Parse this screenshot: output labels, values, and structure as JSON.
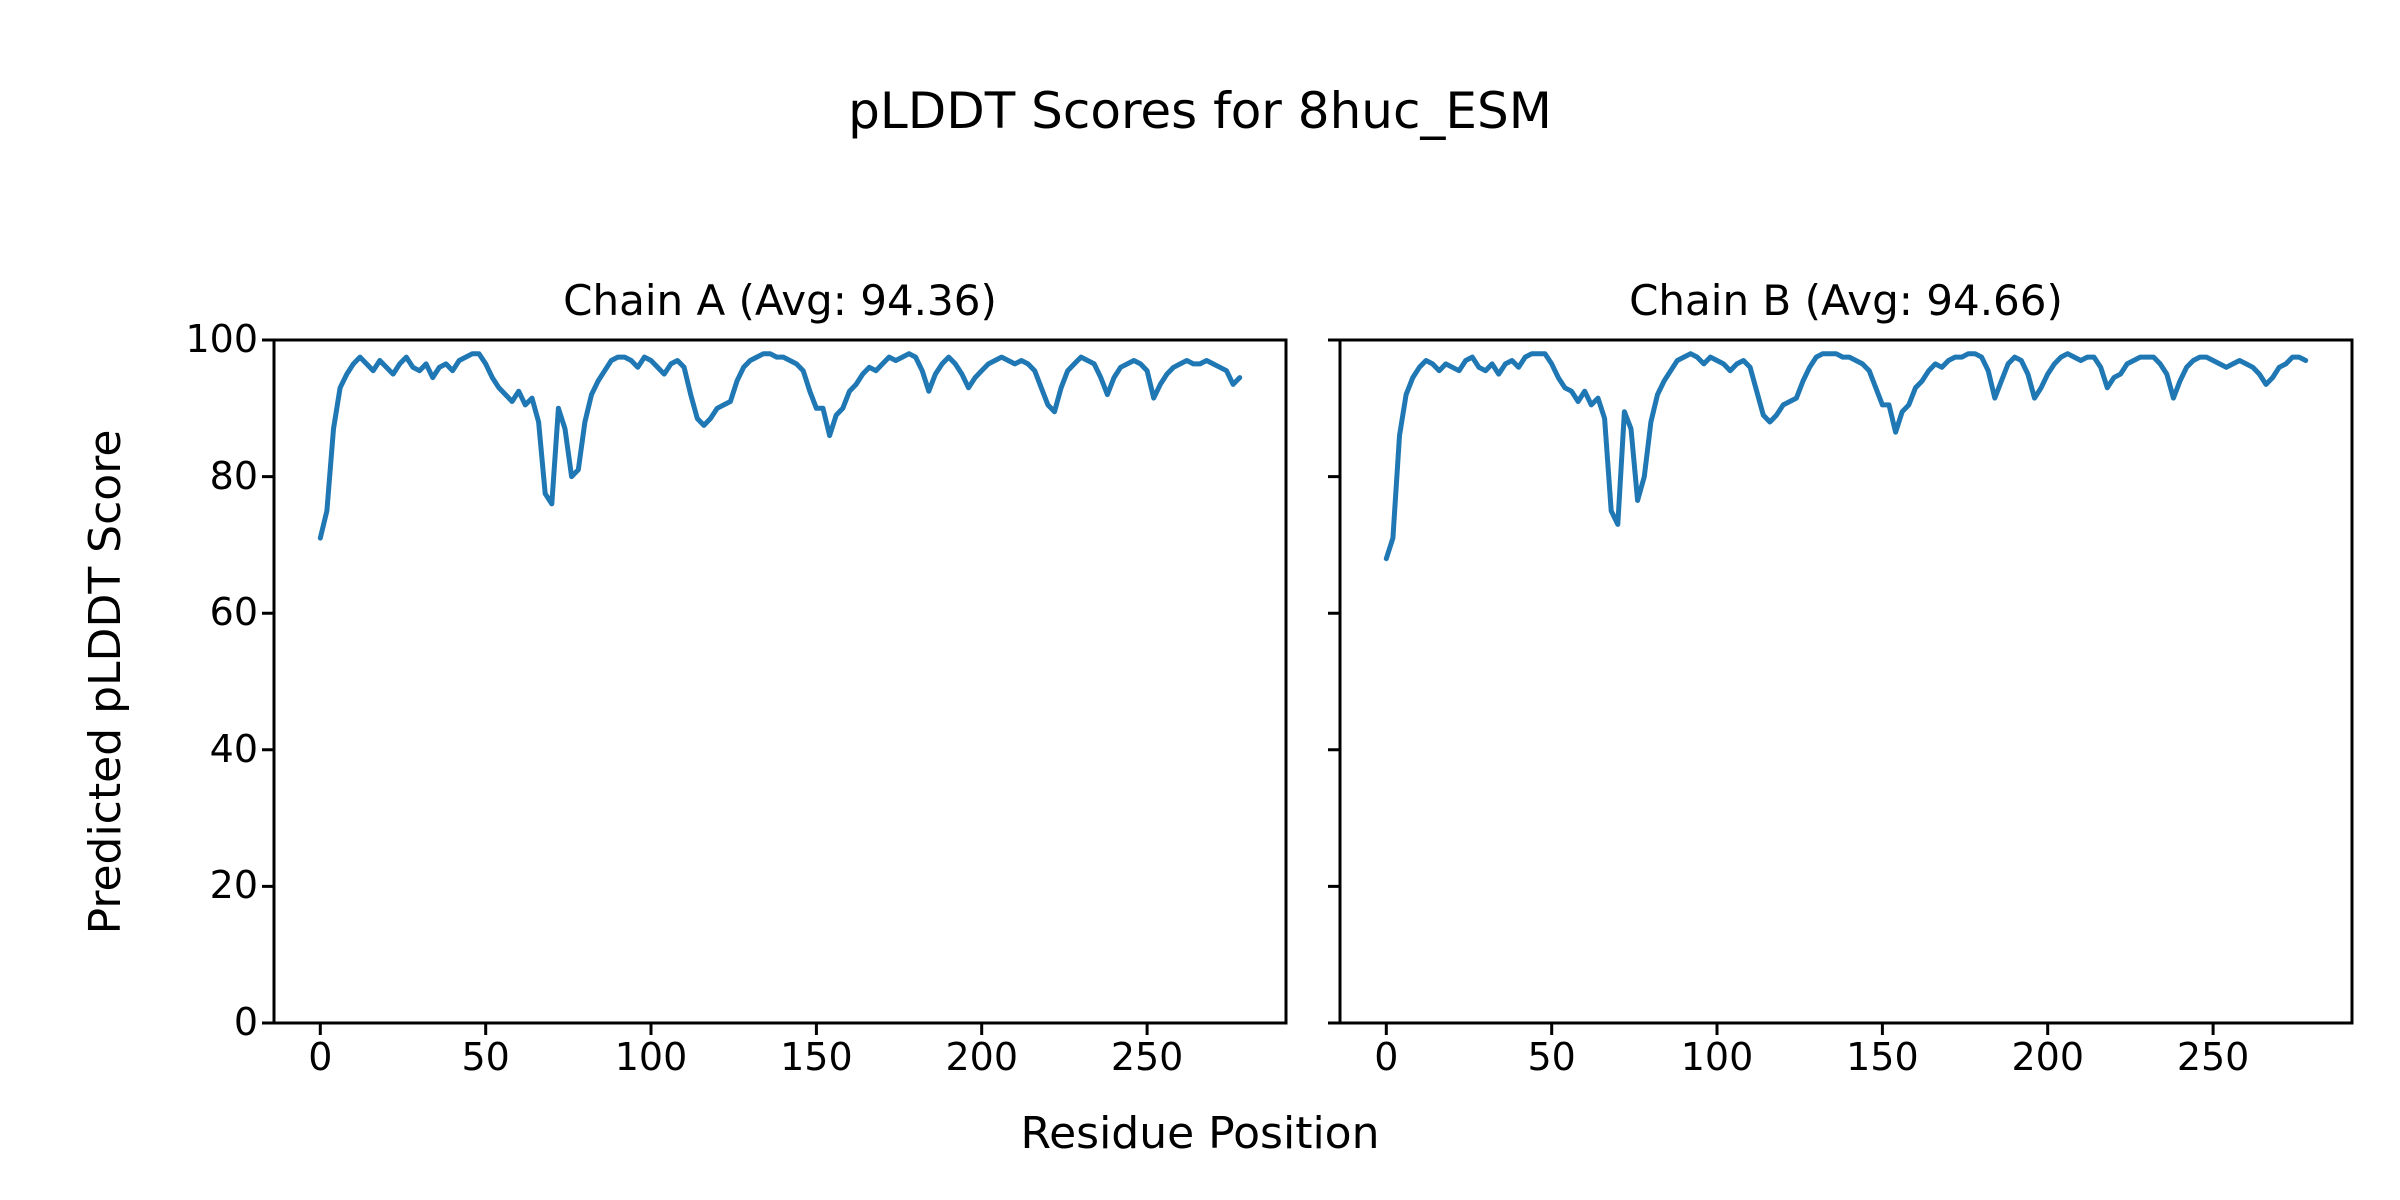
{
  "figure": {
    "suptitle": "pLDDT Scores for 8huc_ESM",
    "xlabel": "Residue Position",
    "ylabel": "Predicted pLDDT Score",
    "background_color": "#ffffff",
    "line_color": "#1f77b4",
    "axis_color": "#000000"
  },
  "chart_data": [
    {
      "type": "line",
      "title": "Chain A (Avg: 94.36)",
      "series_name": "Chain A pLDDT",
      "avg": 94.36,
      "xlim": [
        -14,
        292
      ],
      "ylim": [
        0,
        100
      ],
      "x_ticks": [
        0,
        50,
        100,
        150,
        200,
        250
      ],
      "y_ticks": [
        0,
        20,
        40,
        60,
        80,
        100
      ],
      "show_y_tick_labels": true,
      "grid": false,
      "legend": "none",
      "x": [
        0,
        2,
        4,
        6,
        8,
        10,
        12,
        14,
        16,
        18,
        20,
        22,
        24,
        26,
        28,
        30,
        32,
        34,
        36,
        38,
        40,
        42,
        44,
        46,
        48,
        50,
        52,
        54,
        56,
        58,
        60,
        62,
        64,
        66,
        68,
        70,
        72,
        74,
        76,
        78,
        80,
        82,
        84,
        86,
        88,
        90,
        92,
        94,
        96,
        98,
        100,
        102,
        104,
        106,
        108,
        110,
        112,
        114,
        116,
        118,
        120,
        122,
        124,
        126,
        128,
        130,
        132,
        134,
        136,
        138,
        140,
        142,
        144,
        146,
        148,
        150,
        152,
        154,
        156,
        158,
        160,
        162,
        164,
        166,
        168,
        170,
        172,
        174,
        176,
        178,
        180,
        182,
        184,
        186,
        188,
        190,
        192,
        194,
        196,
        198,
        200,
        202,
        204,
        206,
        208,
        210,
        212,
        214,
        216,
        218,
        220,
        222,
        224,
        226,
        228,
        230,
        232,
        234,
        236,
        238,
        240,
        242,
        244,
        246,
        248,
        250,
        252,
        254,
        256,
        258,
        260,
        262,
        264,
        266,
        268,
        270,
        272,
        274,
        276,
        278
      ],
      "values": [
        71,
        75,
        87,
        93,
        95,
        96.5,
        97.5,
        96.5,
        95.5,
        97,
        96,
        95,
        96.5,
        97.5,
        96,
        95.5,
        96.5,
        94.5,
        96,
        96.5,
        95.5,
        97,
        97.5,
        98,
        98,
        96.5,
        94.5,
        93,
        92,
        91,
        92.5,
        90.5,
        91.5,
        88,
        77.5,
        76,
        90,
        87,
        80,
        81,
        88,
        92,
        94,
        95.5,
        97,
        97.5,
        97.5,
        97,
        96,
        97.5,
        97,
        96,
        95,
        96.5,
        97,
        96,
        92,
        88.5,
        87.5,
        88.5,
        90,
        90.5,
        91,
        94,
        96,
        97,
        97.5,
        98,
        98,
        97.5,
        97.5,
        97,
        96.5,
        95.5,
        92.5,
        90,
        90,
        86,
        89,
        90,
        92.5,
        93.5,
        95,
        96,
        95.5,
        96.5,
        97.5,
        97,
        97.5,
        98,
        97.5,
        95.5,
        92.5,
        95,
        96.5,
        97.5,
        96.5,
        95,
        93,
        94.5,
        95.5,
        96.5,
        97,
        97.5,
        97,
        96.5,
        97,
        96.5,
        95.5,
        93,
        90.5,
        89.5,
        93,
        95.5,
        96.5,
        97.5,
        97,
        96.5,
        94.5,
        92,
        94.5,
        96,
        96.5,
        97,
        96.5,
        95.5,
        91.5,
        93.5,
        95,
        96,
        96.5,
        97,
        96.5,
        96.5,
        97,
        96.5,
        96,
        95.5,
        93.5,
        94.5
      ]
    },
    {
      "type": "line",
      "title": "Chain B (Avg: 94.66)",
      "series_name": "Chain B pLDDT",
      "avg": 94.66,
      "xlim": [
        -14,
        292
      ],
      "ylim": [
        0,
        100
      ],
      "x_ticks": [
        0,
        50,
        100,
        150,
        200,
        250
      ],
      "y_ticks": [
        0,
        20,
        40,
        60,
        80,
        100
      ],
      "show_y_tick_labels": false,
      "grid": false,
      "legend": "none",
      "x": [
        0,
        2,
        4,
        6,
        8,
        10,
        12,
        14,
        16,
        18,
        20,
        22,
        24,
        26,
        28,
        30,
        32,
        34,
        36,
        38,
        40,
        42,
        44,
        46,
        48,
        50,
        52,
        54,
        56,
        58,
        60,
        62,
        64,
        66,
        68,
        70,
        72,
        74,
        76,
        78,
        80,
        82,
        84,
        86,
        88,
        90,
        92,
        94,
        96,
        98,
        100,
        102,
        104,
        106,
        108,
        110,
        112,
        114,
        116,
        118,
        120,
        122,
        124,
        126,
        128,
        130,
        132,
        134,
        136,
        138,
        140,
        142,
        144,
        146,
        148,
        150,
        152,
        154,
        156,
        158,
        160,
        162,
        164,
        166,
        168,
        170,
        172,
        174,
        176,
        178,
        180,
        182,
        184,
        186,
        188,
        190,
        192,
        194,
        196,
        198,
        200,
        202,
        204,
        206,
        208,
        210,
        212,
        214,
        216,
        218,
        220,
        222,
        224,
        226,
        228,
        230,
        232,
        234,
        236,
        238,
        240,
        242,
        244,
        246,
        248,
        250,
        252,
        254,
        256,
        258,
        260,
        262,
        264,
        266,
        268,
        270,
        272,
        274,
        276,
        278
      ],
      "values": [
        68,
        71,
        86,
        92,
        94.5,
        96,
        97,
        96.5,
        95.5,
        96.5,
        96,
        95.5,
        97,
        97.5,
        96,
        95.5,
        96.5,
        95,
        96.5,
        97,
        96,
        97.5,
        98,
        98,
        98,
        96.5,
        94.5,
        93,
        92.5,
        91,
        92.5,
        90.5,
        91.5,
        88.5,
        75,
        73,
        89.5,
        87,
        76.5,
        80,
        88,
        92,
        94,
        95.5,
        97,
        97.5,
        98,
        97.5,
        96.5,
        97.5,
        97,
        96.5,
        95.5,
        96.5,
        97,
        96,
        92.5,
        89,
        88,
        89,
        90.5,
        91,
        91.5,
        94,
        96,
        97.5,
        98,
        98,
        98,
        97.5,
        97.5,
        97,
        96.5,
        95.5,
        93,
        90.5,
        90.5,
        86.5,
        89.5,
        90.5,
        93,
        94,
        95.5,
        96.5,
        96,
        97,
        97.5,
        97.5,
        98,
        98,
        97.5,
        95.5,
        91.5,
        94,
        96.5,
        97.5,
        97,
        95,
        91.5,
        93,
        95,
        96.5,
        97.5,
        98,
        97.5,
        97,
        97.5,
        97.5,
        96,
        93,
        94.5,
        95,
        96.5,
        97,
        97.5,
        97.5,
        97.5,
        96.5,
        95,
        91.5,
        94,
        96,
        97,
        97.5,
        97.5,
        97,
        96.5,
        96,
        96.5,
        97,
        96.5,
        96,
        95,
        93.5,
        94.5,
        96,
        96.5,
        97.5,
        97.5,
        97
      ]
    }
  ]
}
